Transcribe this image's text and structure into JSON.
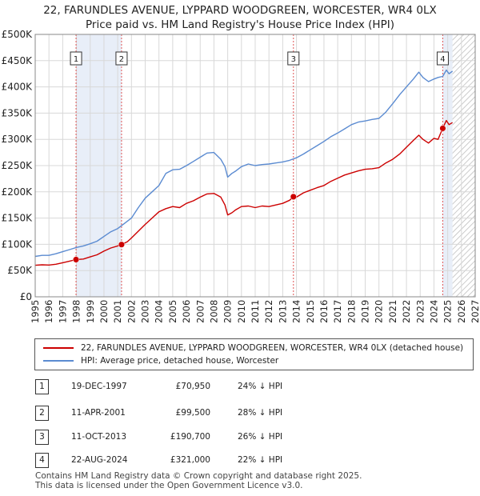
{
  "title": {
    "line1": "22, FARUNDLES AVENUE, LYPPARD WOODGREEN, WORCESTER, WR4 0LX",
    "line2": "Price paid vs. HM Land Registry's House Price Index (HPI)"
  },
  "colors": {
    "red": "#cc0000",
    "blue": "#5b8bd1",
    "shade": "#e8eef8",
    "grid": "#d8d8d8",
    "vline": "#e05555"
  },
  "chart_data": {
    "type": "line",
    "title": "Price paid vs. HM Land Registry's House Price Index (HPI)",
    "xlim": [
      1995,
      2027
    ],
    "ylim": [
      0,
      500000
    ],
    "x_ticks": [
      "1995",
      "1996",
      "1997",
      "1998",
      "1999",
      "2000",
      "2001",
      "2002",
      "2003",
      "2004",
      "2005",
      "2006",
      "2007",
      "2008",
      "2009",
      "2010",
      "2011",
      "2012",
      "2013",
      "2014",
      "2015",
      "2016",
      "2017",
      "2018",
      "2019",
      "2020",
      "2021",
      "2022",
      "2023",
      "2024",
      "2025",
      "2026",
      "2027"
    ],
    "y_ticks": [
      {
        "value": 0,
        "label": "£0"
      },
      {
        "value": 50000,
        "label": "£50K"
      },
      {
        "value": 100000,
        "label": "£100K"
      },
      {
        "value": 150000,
        "label": "£150K"
      },
      {
        "value": 200000,
        "label": "£200K"
      },
      {
        "value": 250000,
        "label": "£250K"
      },
      {
        "value": 300000,
        "label": "£300K"
      },
      {
        "value": 350000,
        "label": "£350K"
      },
      {
        "value": 400000,
        "label": "£400K"
      },
      {
        "value": 450000,
        "label": "£450K"
      },
      {
        "value": 500000,
        "label": "£500K"
      }
    ],
    "shaded_ranges": [
      [
        1997.97,
        2001.28
      ],
      [
        2024.64,
        2025.35
      ]
    ],
    "hatched_from": 2025.35,
    "series": [
      {
        "name": "22, FARUNDLES AVENUE, LYPPARD WOODGREEN, WORCESTER, WR4 0LX (detached house)",
        "color": "#cc0000",
        "points": [
          [
            1995.0,
            60000
          ],
          [
            1995.5,
            61000
          ],
          [
            1996.0,
            60500
          ],
          [
            1996.5,
            62000
          ],
          [
            1997.0,
            65000
          ],
          [
            1997.5,
            68000
          ],
          [
            1997.97,
            70950
          ],
          [
            1998.5,
            72000
          ],
          [
            1999.0,
            76000
          ],
          [
            1999.5,
            80000
          ],
          [
            2000.0,
            87000
          ],
          [
            2000.5,
            93000
          ],
          [
            2001.0,
            97000
          ],
          [
            2001.28,
            99500
          ],
          [
            2001.7,
            105000
          ],
          [
            2002.0,
            112000
          ],
          [
            2002.5,
            125000
          ],
          [
            2003.0,
            138000
          ],
          [
            2003.5,
            150000
          ],
          [
            2004.0,
            162000
          ],
          [
            2004.5,
            168000
          ],
          [
            2005.0,
            172000
          ],
          [
            2005.5,
            170000
          ],
          [
            2006.0,
            178000
          ],
          [
            2006.5,
            183000
          ],
          [
            2007.0,
            190000
          ],
          [
            2007.5,
            196000
          ],
          [
            2008.0,
            197000
          ],
          [
            2008.5,
            190000
          ],
          [
            2008.8,
            175000
          ],
          [
            2009.0,
            156000
          ],
          [
            2009.3,
            160000
          ],
          [
            2009.6,
            166000
          ],
          [
            2010.0,
            172000
          ],
          [
            2010.5,
            173000
          ],
          [
            2011.0,
            170000
          ],
          [
            2011.5,
            173000
          ],
          [
            2012.0,
            172000
          ],
          [
            2012.5,
            175000
          ],
          [
            2013.0,
            178000
          ],
          [
            2013.5,
            184000
          ],
          [
            2013.78,
            190700
          ],
          [
            2014.0,
            190000
          ],
          [
            2014.5,
            198000
          ],
          [
            2015.0,
            203000
          ],
          [
            2015.5,
            208000
          ],
          [
            2016.0,
            212000
          ],
          [
            2016.5,
            220000
          ],
          [
            2017.0,
            226000
          ],
          [
            2017.5,
            232000
          ],
          [
            2018.0,
            236000
          ],
          [
            2018.5,
            240000
          ],
          [
            2019.0,
            243000
          ],
          [
            2019.5,
            244000
          ],
          [
            2020.0,
            246000
          ],
          [
            2020.5,
            255000
          ],
          [
            2021.0,
            262000
          ],
          [
            2021.5,
            272000
          ],
          [
            2022.0,
            285000
          ],
          [
            2022.5,
            298000
          ],
          [
            2022.9,
            308000
          ],
          [
            2023.2,
            300000
          ],
          [
            2023.6,
            293000
          ],
          [
            2024.0,
            302000
          ],
          [
            2024.3,
            300000
          ],
          [
            2024.64,
            321000
          ],
          [
            2024.9,
            336000
          ],
          [
            2025.1,
            328000
          ],
          [
            2025.35,
            332000
          ]
        ]
      },
      {
        "name": "HPI: Average price, detached house, Worcester",
        "color": "#5b8bd1",
        "points": [
          [
            1995.0,
            77000
          ],
          [
            1995.5,
            79000
          ],
          [
            1996.0,
            79000
          ],
          [
            1996.5,
            82000
          ],
          [
            1997.0,
            86000
          ],
          [
            1997.5,
            90000
          ],
          [
            1998.0,
            94000
          ],
          [
            1998.5,
            97000
          ],
          [
            1999.0,
            101000
          ],
          [
            1999.5,
            106000
          ],
          [
            2000.0,
            115000
          ],
          [
            2000.5,
            124000
          ],
          [
            2001.0,
            130000
          ],
          [
            2001.5,
            140000
          ],
          [
            2002.0,
            150000
          ],
          [
            2002.5,
            170000
          ],
          [
            2003.0,
            188000
          ],
          [
            2003.5,
            200000
          ],
          [
            2004.0,
            212000
          ],
          [
            2004.5,
            235000
          ],
          [
            2005.0,
            242000
          ],
          [
            2005.5,
            243000
          ],
          [
            2006.0,
            250000
          ],
          [
            2006.5,
            258000
          ],
          [
            2007.0,
            266000
          ],
          [
            2007.5,
            274000
          ],
          [
            2008.0,
            275000
          ],
          [
            2008.5,
            262000
          ],
          [
            2008.8,
            248000
          ],
          [
            2009.0,
            228000
          ],
          [
            2009.3,
            235000
          ],
          [
            2009.6,
            240000
          ],
          [
            2010.0,
            248000
          ],
          [
            2010.5,
            253000
          ],
          [
            2011.0,
            250000
          ],
          [
            2011.5,
            252000
          ],
          [
            2012.0,
            253000
          ],
          [
            2012.5,
            255000
          ],
          [
            2013.0,
            257000
          ],
          [
            2013.5,
            260000
          ],
          [
            2014.0,
            265000
          ],
          [
            2014.5,
            272000
          ],
          [
            2015.0,
            280000
          ],
          [
            2015.5,
            288000
          ],
          [
            2016.0,
            296000
          ],
          [
            2016.5,
            305000
          ],
          [
            2017.0,
            312000
          ],
          [
            2017.5,
            320000
          ],
          [
            2018.0,
            328000
          ],
          [
            2018.5,
            333000
          ],
          [
            2019.0,
            335000
          ],
          [
            2019.5,
            338000
          ],
          [
            2020.0,
            340000
          ],
          [
            2020.5,
            352000
          ],
          [
            2021.0,
            368000
          ],
          [
            2021.5,
            385000
          ],
          [
            2022.0,
            400000
          ],
          [
            2022.5,
            415000
          ],
          [
            2022.9,
            428000
          ],
          [
            2023.2,
            418000
          ],
          [
            2023.6,
            410000
          ],
          [
            2024.0,
            415000
          ],
          [
            2024.3,
            418000
          ],
          [
            2024.64,
            420000
          ],
          [
            2024.9,
            432000
          ],
          [
            2025.1,
            425000
          ],
          [
            2025.35,
            430000
          ]
        ]
      }
    ],
    "transactions": [
      {
        "num": "1",
        "date": "19-DEC-1997",
        "price": "£70,950",
        "delta": "24% ↓ HPI",
        "x": 1997.97,
        "y": 70950
      },
      {
        "num": "2",
        "date": "11-APR-2001",
        "price": "£99,500",
        "delta": "28% ↓ HPI",
        "x": 2001.28,
        "y": 99500
      },
      {
        "num": "3",
        "date": "11-OCT-2013",
        "price": "£190,700",
        "delta": "26% ↓ HPI",
        "x": 2013.78,
        "y": 190700
      },
      {
        "num": "4",
        "date": "22-AUG-2024",
        "price": "£321,000",
        "delta": "22% ↓ HPI",
        "x": 2024.64,
        "y": 321000
      }
    ]
  },
  "legend": {
    "red_label": "22, FARUNDLES AVENUE, LYPPARD WOODGREEN, WORCESTER, WR4 0LX (detached house)",
    "blue_label": "HPI: Average price, detached house, Worcester"
  },
  "footer": {
    "line1": "Contains HM Land Registry data © Crown copyright and database right 2025.",
    "line2": "This data is licensed under the Open Government Licence v3.0."
  }
}
